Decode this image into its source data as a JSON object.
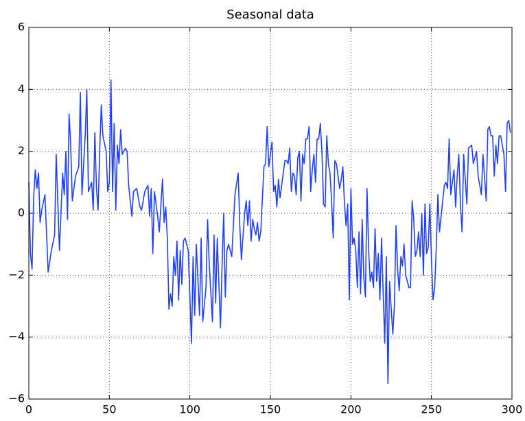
{
  "chart_data": {
    "type": "line",
    "title": "Seasonal data",
    "color": "#1f3fff",
    "x": [
      0,
      1,
      2,
      3,
      4,
      5,
      6,
      7,
      8,
      10,
      12,
      14,
      16,
      17,
      19,
      21,
      22,
      23,
      24,
      25,
      26,
      27,
      29,
      31,
      32,
      33,
      35,
      36,
      37,
      39,
      40,
      41,
      42,
      43,
      44,
      45,
      46,
      48,
      49,
      50,
      51,
      52,
      53,
      54,
      55,
      56,
      57,
      58,
      60,
      61,
      62,
      64,
      65,
      67,
      69,
      70,
      72,
      74,
      75,
      76,
      77,
      78,
      80,
      81,
      83,
      84,
      85,
      86,
      87,
      88,
      89,
      90,
      91,
      92,
      93,
      94,
      95,
      96,
      97,
      99,
      101,
      102,
      103,
      104,
      106,
      107,
      108,
      110,
      111,
      112,
      114,
      115,
      116,
      117,
      119,
      120,
      121,
      122,
      123,
      124,
      126,
      128,
      130,
      131,
      132,
      134,
      135,
      136,
      137,
      138,
      139,
      140,
      141,
      142,
      143,
      144,
      146,
      147,
      148,
      149,
      151,
      152,
      153,
      154,
      155,
      156,
      157,
      159,
      160,
      161,
      162,
      163,
      164,
      165,
      166,
      167,
      168,
      169,
      170,
      171,
      172,
      173,
      174,
      175,
      176,
      177,
      178,
      179,
      180,
      181,
      182,
      183,
      184,
      185,
      186,
      187,
      188,
      189,
      190,
      191,
      192,
      193,
      194,
      195,
      196,
      197,
      198,
      199,
      200,
      201,
      202,
      203,
      204,
      205,
      206,
      207,
      208,
      209,
      210,
      211,
      212,
      213,
      214,
      215,
      216,
      217,
      218,
      219,
      220,
      221,
      222,
      223,
      224,
      226,
      227,
      228,
      229,
      230,
      231,
      232,
      233,
      234,
      235,
      236,
      237,
      238,
      239,
      240,
      241,
      242,
      243,
      244,
      245,
      246,
      247,
      248,
      249,
      250,
      251,
      252,
      253,
      254,
      255,
      256,
      257,
      258,
      259,
      260,
      261,
      262,
      263,
      264,
      265,
      266,
      267,
      268,
      269,
      270,
      272,
      273,
      275,
      276,
      278,
      279,
      281,
      282,
      284,
      285,
      286,
      287,
      288,
      289,
      290,
      291,
      292,
      293,
      295,
      296,
      297,
      298,
      299
    ],
    "values": [
      1.0,
      -1.3,
      -1.8,
      0.5,
      1.4,
      0.8,
      1.3,
      -0.3,
      0.1,
      0.6,
      -1.9,
      -1.2,
      -0.7,
      1.9,
      -1.2,
      1.3,
      0.6,
      2.0,
      -0.2,
      3.2,
      2.2,
      0.4,
      1.2,
      1.5,
      3.9,
      0.6,
      2.5,
      4.0,
      0.7,
      1.0,
      0.1,
      2.6,
      0.8,
      0.1,
      2.0,
      3.5,
      2.5,
      2.0,
      0.7,
      1.0,
      4.3,
      0.7,
      2.9,
      0.1,
      2.2,
      1.6,
      2.7,
      1.9,
      2.1,
      2.0,
      0.9,
      -0.1,
      0.7,
      0.8,
      0.2,
      0.1,
      0.7,
      0.9,
      -0.1,
      0.8,
      -1.3,
      0.7,
      -0.1,
      -0.6,
      1.1,
      -0.3,
      0.2,
      -0.8,
      -3.1,
      -2.6,
      -3.0,
      -1.4,
      -2.0,
      -0.9,
      -2.8,
      -1.2,
      -2.3,
      -0.9,
      -0.8,
      -1.2,
      -4.2,
      -1.4,
      -3.3,
      -1.0,
      -3.3,
      -0.8,
      -3.5,
      -2.4,
      -0.2,
      -1.6,
      -3.5,
      -0.7,
      -2.9,
      -0.8,
      -3.7,
      -1.7,
      0.0,
      -2.7,
      -1.2,
      -1.0,
      -1.4,
      0.6,
      1.3,
      -0.4,
      -1.5,
      0.0,
      0.4,
      -0.4,
      0.4,
      -0.9,
      -0.2,
      -0.5,
      -0.7,
      -0.3,
      -0.9,
      -0.6,
      1.5,
      1.6,
      2.8,
      1.5,
      2.3,
      0.7,
      0.9,
      0.2,
      1.1,
      0.5,
      0.9,
      1.7,
      1.7,
      1.6,
      2.1,
      0.7,
      1.3,
      1.2,
      0.6,
      1.8,
      2.0,
      0.4,
      1.9,
      1.6,
      2.4,
      2.4,
      2.8,
      0.7,
      1.4,
      1.9,
      1.0,
      2.4,
      2.4,
      2.9,
      2.0,
      0.3,
      0.2,
      2.5,
      1.6,
      1.3,
      0.4,
      -0.8,
      1.7,
      1.6,
      1.2,
      0.8,
      1.1,
      1.5,
      0.3,
      -0.4,
      0.3,
      -2.8,
      0.8,
      -1.0,
      -0.8,
      -1.2,
      -2.4,
      -0.6,
      -2.6,
      -0.2,
      -2.1,
      -2.7,
      0.8,
      -1.2,
      -2.2,
      -1.9,
      -2.4,
      -0.5,
      -2.2,
      -1.3,
      -2.8,
      -0.8,
      -2.5,
      -4.2,
      -1.4,
      -5.5,
      -2.2,
      -3.9,
      -3.0,
      -0.4,
      -1.8,
      -2.5,
      -1.4,
      -1.7,
      -1.0,
      -2.0,
      -2.2,
      -2.4,
      -2.4,
      0.4,
      -0.2,
      -1.4,
      -1.2,
      -0.6,
      -1.4,
      0.0,
      -2.0,
      0.3,
      -1.3,
      -1.1,
      0.3,
      -1.5,
      -2.8,
      -2.4,
      -1.1,
      0.6,
      -0.6,
      -0.1,
      0.4,
      0.9,
      1.0,
      0.8,
      2.4,
      0.6,
      1.0,
      1.4,
      0.2,
      1.2,
      1.9,
      0.3,
      -0.6,
      1.9,
      0.3,
      2.1,
      2.2,
      1.6,
      2.0,
      1.2,
      0.6,
      1.9,
      0.4,
      2.7,
      2.8,
      2.5,
      2.5,
      1.2,
      2.2,
      1.6,
      2.5,
      2.5,
      1.9,
      0.7,
      2.9,
      3.0,
      2.6
    ],
    "xlim": [
      0,
      300
    ],
    "xticks": [
      0,
      50,
      100,
      150,
      200,
      250,
      300
    ],
    "ylim": [
      -6,
      6
    ],
    "yticks": [
      {
        "value": -6,
        "label": "−6"
      },
      {
        "value": -4,
        "label": "−4"
      },
      {
        "value": -2,
        "label": "−2"
      },
      0,
      2,
      4,
      6
    ],
    "grid": true
  }
}
